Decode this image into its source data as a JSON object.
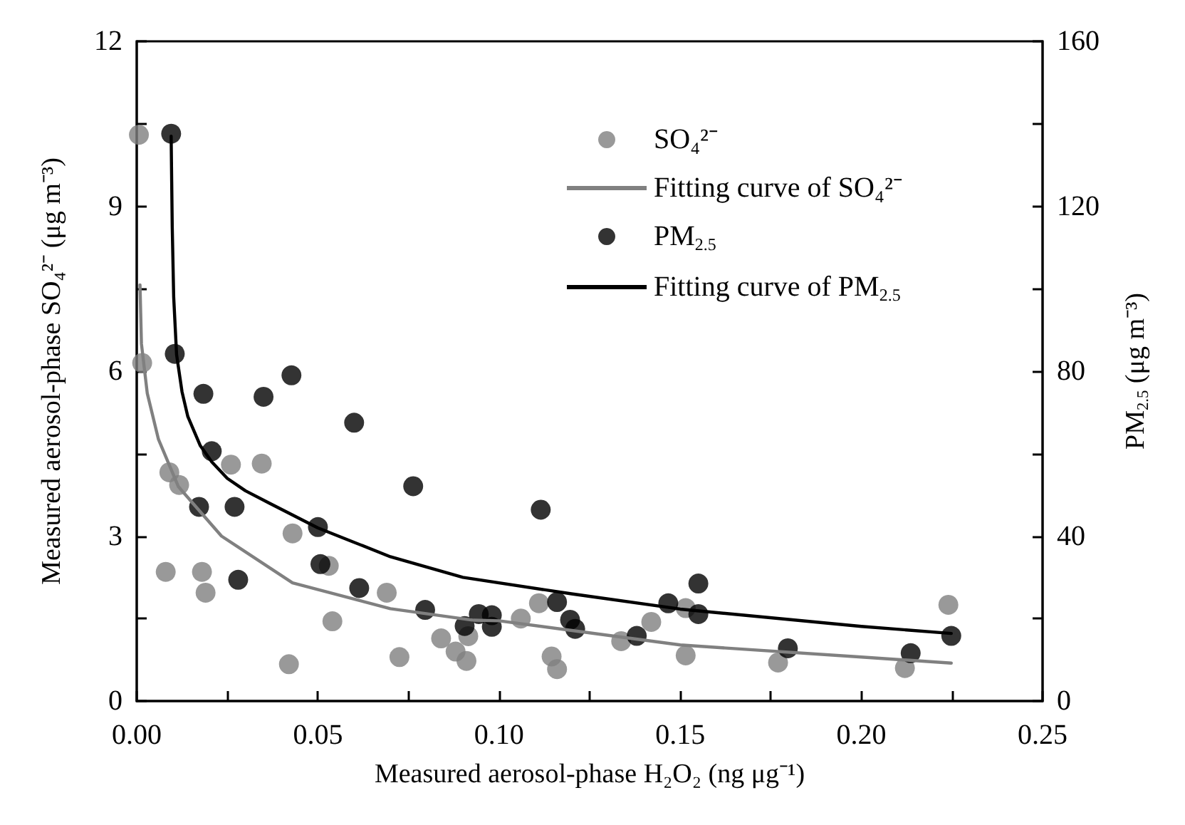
{
  "chart_data": {
    "type": "scatter",
    "xlabel": "Measured aerosol-phase H₂O₂ (ng μg⁻¹)",
    "ylabel": "Measured aerosol-phase SO₄²⁻ (μg m⁻³)",
    "y2label": "PM$_{2.5}$ (μg m⁻³)",
    "xlim": [
      0,
      0.25
    ],
    "xticks": [
      {
        "value": 0,
        "label": "0.00"
      },
      {
        "value": 0.025,
        "label": null
      },
      {
        "value": 0.05,
        "label": "0.05"
      },
      {
        "value": 0.075,
        "label": null
      },
      {
        "value": 0.1,
        "label": "0.10"
      },
      {
        "value": 0.125,
        "label": null
      },
      {
        "value": 0.15,
        "label": "0.15"
      },
      {
        "value": 0.175,
        "label": null
      },
      {
        "value": 0.2,
        "label": "0.20"
      },
      {
        "value": 0.225,
        "label": null
      },
      {
        "value": 0.25,
        "label": "0.25"
      }
    ],
    "ylim": [
      0,
      12
    ],
    "yticks": [
      0,
      {
        "value": 1.5,
        "label": null
      },
      3,
      {
        "value": 4.5,
        "label": null
      },
      6,
      {
        "value": 7.5,
        "label": null
      },
      9,
      {
        "value": 10.5,
        "label": null
      },
      12
    ],
    "y2lim": [
      0,
      160
    ],
    "y2ticks": [
      0,
      {
        "value": 20,
        "label": null
      },
      40,
      {
        "value": 60,
        "label": null
      },
      80,
      {
        "value": 100,
        "label": null
      },
      120,
      {
        "value": 140,
        "label": null
      },
      160
    ],
    "legend": "top",
    "grid": false,
    "marker": "circle",
    "series": [
      {
        "name": "SO₄²⁻",
        "type": "scatter",
        "color": "#808080",
        "x": [
          0.0006,
          0.0015,
          0.009,
          0.0117,
          0.026,
          0.0345,
          0.008,
          0.018,
          0.019,
          0.043,
          0.053,
          0.054,
          0.042,
          0.069,
          0.0725,
          0.084,
          0.088,
          0.091,
          0.0915,
          0.106,
          0.111,
          0.1145,
          0.116,
          0.1337,
          0.142,
          0.1515,
          0.1515,
          0.177,
          0.212,
          0.224
        ],
        "values": [
          10.3,
          6.15,
          4.16,
          3.93,
          4.3,
          4.32,
          2.35,
          2.35,
          1.97,
          3.05,
          2.46,
          1.45,
          0.67,
          1.97,
          0.8,
          1.14,
          0.9,
          0.73,
          1.18,
          1.5,
          1.78,
          0.81,
          0.58,
          1.09,
          1.44,
          1.69,
          0.83,
          0.7,
          0.6,
          1.75
        ]
      },
      {
        "name": "Fitting curve of SO₄²⁻",
        "type": "line",
        "marker": "none",
        "color": "#808080",
        "x": [
          0.0009,
          0.0013,
          0.0029,
          0.006,
          0.0115,
          0.0234,
          0.043,
          0.07,
          0.093,
          0.1,
          0.15,
          0.2,
          0.2248
        ],
        "values": [
          7.57,
          6.5,
          5.6,
          4.76,
          3.9,
          3.0,
          2.15,
          1.68,
          1.47,
          1.46,
          1.02,
          0.8,
          0.69
        ]
      },
      {
        "name": "PM$_{2.5}$",
        "type": "scatter",
        "axis": "y2",
        "color": "#000000",
        "x": [
          0.0095,
          0.0105,
          0.0184,
          0.035,
          0.0427,
          0.06,
          0.0207,
          0.0172,
          0.027,
          0.0763,
          0.05,
          0.0507,
          0.028,
          0.0614,
          0.0796,
          0.0905,
          0.1115,
          0.116,
          0.0944,
          0.098,
          0.098,
          0.1196,
          0.121,
          0.138,
          0.1467,
          0.155,
          0.155,
          0.1797,
          0.2136,
          0.2248
        ],
        "values": [
          137.6,
          84.2,
          74.5,
          73.8,
          79,
          67.5,
          60.6,
          47.1,
          47.1,
          52.1,
          42.2,
          33.2,
          29.4,
          27.4,
          22.1,
          18.2,
          46.4,
          24,
          21.1,
          20.8,
          18,
          19.7,
          17.5,
          15.8,
          23.7,
          28.5,
          21.1,
          12.8,
          11.6,
          15.8
        ]
      },
      {
        "name": "Fitting curve of PM$_{2.5}$",
        "type": "line",
        "axis": "y2",
        "marker": "none",
        "color": "#000000",
        "x": [
          0.0095,
          0.0098,
          0.0102,
          0.011,
          0.0125,
          0.0141,
          0.0175,
          0.0207,
          0.025,
          0.03,
          0.0366,
          0.05,
          0.07,
          0.09,
          0.12,
          0.15,
          0.2,
          0.2248
        ],
        "values": [
          137,
          115,
          98,
          84,
          75,
          69,
          62,
          58,
          54,
          51,
          48,
          42,
          35,
          30,
          26,
          22.3,
          18.1,
          16.4
        ]
      }
    ]
  }
}
